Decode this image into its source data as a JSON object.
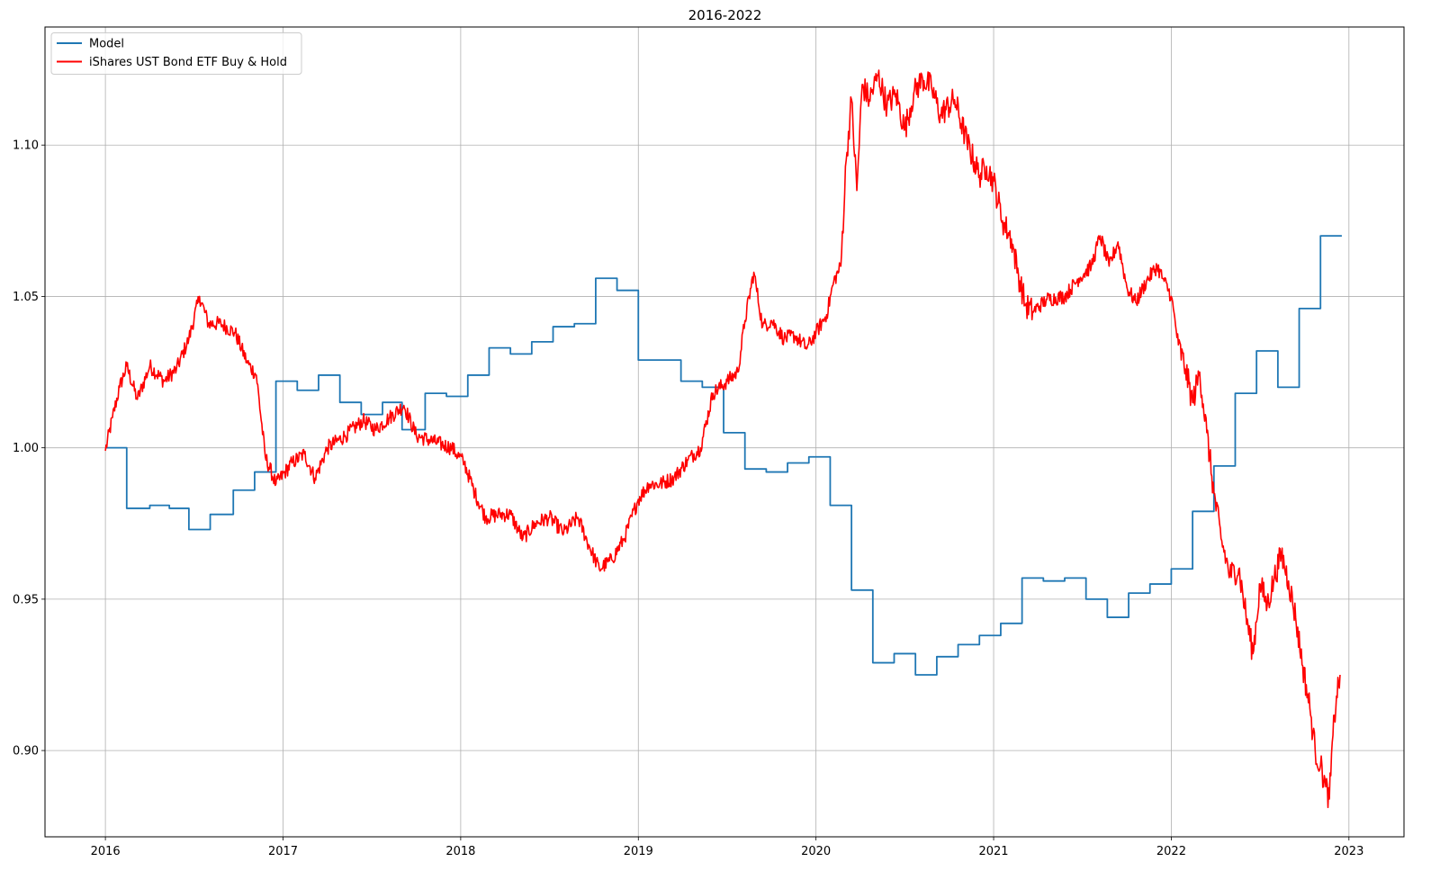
{
  "chart_data": {
    "type": "line",
    "title": "2016-2022",
    "xlabel": "",
    "ylabel": "",
    "xlim": [
      2015.66,
      2023.31
    ],
    "ylim": [
      0.8715,
      1.139
    ],
    "x_ticks": [
      {
        "value": 2016,
        "label": "2016"
      },
      {
        "value": 2017,
        "label": "2017"
      },
      {
        "value": 2018,
        "label": "2018"
      },
      {
        "value": 2019,
        "label": "2019"
      },
      {
        "value": 2020,
        "label": "2020"
      },
      {
        "value": 2021,
        "label": "2021"
      },
      {
        "value": 2022,
        "label": "2022"
      },
      {
        "value": 2023,
        "label": "2023"
      }
    ],
    "y_ticks": [
      {
        "value": 0.9,
        "label": "0.90"
      },
      {
        "value": 0.95,
        "label": "0.95"
      },
      {
        "value": 1.0,
        "label": "1.00"
      },
      {
        "value": 1.05,
        "label": "1.05"
      },
      {
        "value": 1.1,
        "label": "1.10"
      }
    ],
    "grid": true,
    "legend_position": "top-left",
    "series": [
      {
        "name": "Model",
        "color": "#1f77b4",
        "style": "step",
        "points": [
          [
            2016.0,
            1.0
          ],
          [
            2016.12,
            1.0
          ],
          [
            2016.12,
            0.98
          ],
          [
            2016.25,
            0.98
          ],
          [
            2016.25,
            0.981
          ],
          [
            2016.36,
            0.981
          ],
          [
            2016.36,
            0.98
          ],
          [
            2016.47,
            0.98
          ],
          [
            2016.47,
            0.973
          ],
          [
            2016.59,
            0.973
          ],
          [
            2016.59,
            0.978
          ],
          [
            2016.72,
            0.978
          ],
          [
            2016.72,
            0.986
          ],
          [
            2016.84,
            0.986
          ],
          [
            2016.84,
            0.992
          ],
          [
            2016.96,
            0.992
          ],
          [
            2016.96,
            1.022
          ],
          [
            2017.08,
            1.022
          ],
          [
            2017.08,
            1.019
          ],
          [
            2017.2,
            1.019
          ],
          [
            2017.2,
            1.024
          ],
          [
            2017.32,
            1.024
          ],
          [
            2017.32,
            1.015
          ],
          [
            2017.44,
            1.015
          ],
          [
            2017.44,
            1.011
          ],
          [
            2017.56,
            1.011
          ],
          [
            2017.56,
            1.015
          ],
          [
            2017.67,
            1.015
          ],
          [
            2017.67,
            1.006
          ],
          [
            2017.8,
            1.006
          ],
          [
            2017.8,
            1.018
          ],
          [
            2017.92,
            1.018
          ],
          [
            2017.92,
            1.017
          ],
          [
            2018.04,
            1.017
          ],
          [
            2018.04,
            1.024
          ],
          [
            2018.16,
            1.024
          ],
          [
            2018.16,
            1.033
          ],
          [
            2018.28,
            1.033
          ],
          [
            2018.28,
            1.031
          ],
          [
            2018.4,
            1.031
          ],
          [
            2018.4,
            1.035
          ],
          [
            2018.52,
            1.035
          ],
          [
            2018.52,
            1.04
          ],
          [
            2018.64,
            1.04
          ],
          [
            2018.64,
            1.041
          ],
          [
            2018.76,
            1.041
          ],
          [
            2018.76,
            1.056
          ],
          [
            2018.88,
            1.056
          ],
          [
            2018.88,
            1.052
          ],
          [
            2019.0,
            1.052
          ],
          [
            2019.0,
            1.029
          ],
          [
            2019.12,
            1.029
          ],
          [
            2019.12,
            1.029
          ],
          [
            2019.24,
            1.029
          ],
          [
            2019.24,
            1.022
          ],
          [
            2019.36,
            1.022
          ],
          [
            2019.36,
            1.02
          ],
          [
            2019.48,
            1.02
          ],
          [
            2019.48,
            1.005
          ],
          [
            2019.6,
            1.005
          ],
          [
            2019.6,
            0.993
          ],
          [
            2019.72,
            0.993
          ],
          [
            2019.72,
            0.992
          ],
          [
            2019.84,
            0.992
          ],
          [
            2019.84,
            0.995
          ],
          [
            2019.96,
            0.995
          ],
          [
            2019.96,
            0.997
          ],
          [
            2020.08,
            0.997
          ],
          [
            2020.08,
            0.981
          ],
          [
            2020.2,
            0.981
          ],
          [
            2020.2,
            0.953
          ],
          [
            2020.32,
            0.953
          ],
          [
            2020.32,
            0.929
          ],
          [
            2020.44,
            0.929
          ],
          [
            2020.44,
            0.932
          ],
          [
            2020.56,
            0.932
          ],
          [
            2020.56,
            0.925
          ],
          [
            2020.68,
            0.925
          ],
          [
            2020.68,
            0.931
          ],
          [
            2020.8,
            0.931
          ],
          [
            2020.8,
            0.935
          ],
          [
            2020.92,
            0.935
          ],
          [
            2020.92,
            0.938
          ],
          [
            2021.04,
            0.938
          ],
          [
            2021.04,
            0.942
          ],
          [
            2021.16,
            0.942
          ],
          [
            2021.16,
            0.957
          ],
          [
            2021.28,
            0.957
          ],
          [
            2021.28,
            0.956
          ],
          [
            2021.4,
            0.956
          ],
          [
            2021.4,
            0.957
          ],
          [
            2021.52,
            0.957
          ],
          [
            2021.52,
            0.95
          ],
          [
            2021.64,
            0.95
          ],
          [
            2021.64,
            0.944
          ],
          [
            2021.76,
            0.944
          ],
          [
            2021.76,
            0.952
          ],
          [
            2021.88,
            0.952
          ],
          [
            2021.88,
            0.955
          ],
          [
            2022.0,
            0.955
          ],
          [
            2022.0,
            0.96
          ],
          [
            2022.12,
            0.96
          ],
          [
            2022.12,
            0.979
          ],
          [
            2022.24,
            0.979
          ],
          [
            2022.24,
            0.994
          ],
          [
            2022.36,
            0.994
          ],
          [
            2022.36,
            1.018
          ],
          [
            2022.48,
            1.018
          ],
          [
            2022.48,
            1.032
          ],
          [
            2022.6,
            1.032
          ],
          [
            2022.6,
            1.02
          ],
          [
            2022.72,
            1.02
          ],
          [
            2022.72,
            1.046
          ],
          [
            2022.84,
            1.046
          ],
          [
            2022.84,
            1.07
          ],
          [
            2022.96,
            1.07
          ]
        ]
      },
      {
        "name": "iShares UST Bond ETF Buy & Hold",
        "color": "#ff0000",
        "style": "line",
        "anchors": [
          [
            2016.0,
            0.999
          ],
          [
            2016.04,
            1.01
          ],
          [
            2016.08,
            1.02
          ],
          [
            2016.12,
            1.027
          ],
          [
            2016.18,
            1.016
          ],
          [
            2016.25,
            1.027
          ],
          [
            2016.33,
            1.022
          ],
          [
            2016.4,
            1.026
          ],
          [
            2016.47,
            1.036
          ],
          [
            2016.53,
            1.05
          ],
          [
            2016.58,
            1.041
          ],
          [
            2016.65,
            1.041
          ],
          [
            2016.73,
            1.038
          ],
          [
            2016.8,
            1.028
          ],
          [
            2016.85,
            1.024
          ],
          [
            2016.9,
            0.997
          ],
          [
            2016.96,
            0.988
          ],
          [
            2017.05,
            0.995
          ],
          [
            2017.12,
            0.998
          ],
          [
            2017.18,
            0.99
          ],
          [
            2017.25,
            1.0
          ],
          [
            2017.35,
            1.004
          ],
          [
            2017.45,
            1.009
          ],
          [
            2017.52,
            1.006
          ],
          [
            2017.6,
            1.01
          ],
          [
            2017.68,
            1.014
          ],
          [
            2017.75,
            1.004
          ],
          [
            2017.85,
            1.002
          ],
          [
            2017.95,
            1.0
          ],
          [
            2018.02,
            0.995
          ],
          [
            2018.08,
            0.985
          ],
          [
            2018.14,
            0.977
          ],
          [
            2018.22,
            0.978
          ],
          [
            2018.28,
            0.978
          ],
          [
            2018.35,
            0.97
          ],
          [
            2018.42,
            0.975
          ],
          [
            2018.5,
            0.977
          ],
          [
            2018.58,
            0.972
          ],
          [
            2018.66,
            0.977
          ],
          [
            2018.72,
            0.968
          ],
          [
            2018.78,
            0.96
          ],
          [
            2018.85,
            0.963
          ],
          [
            2018.92,
            0.97
          ],
          [
            2019.0,
            0.983
          ],
          [
            2019.06,
            0.988
          ],
          [
            2019.12,
            0.988
          ],
          [
            2019.2,
            0.99
          ],
          [
            2019.28,
            0.996
          ],
          [
            2019.35,
            1.0
          ],
          [
            2019.42,
            1.018
          ],
          [
            2019.5,
            1.022
          ],
          [
            2019.56,
            1.025
          ],
          [
            2019.6,
            1.042
          ],
          [
            2019.65,
            1.058
          ],
          [
            2019.7,
            1.04
          ],
          [
            2019.75,
            1.042
          ],
          [
            2019.82,
            1.036
          ],
          [
            2019.88,
            1.037
          ],
          [
            2019.95,
            1.033
          ],
          [
            2020.0,
            1.038
          ],
          [
            2020.06,
            1.044
          ],
          [
            2020.1,
            1.055
          ],
          [
            2020.14,
            1.06
          ],
          [
            2020.17,
            1.095
          ],
          [
            2020.2,
            1.115
          ],
          [
            2020.23,
            1.085
          ],
          [
            2020.26,
            1.12
          ],
          [
            2020.3,
            1.115
          ],
          [
            2020.35,
            1.123
          ],
          [
            2020.4,
            1.113
          ],
          [
            2020.45,
            1.117
          ],
          [
            2020.5,
            1.105
          ],
          [
            2020.55,
            1.117
          ],
          [
            2020.6,
            1.122
          ],
          [
            2020.65,
            1.119
          ],
          [
            2020.7,
            1.11
          ],
          [
            2020.78,
            1.115
          ],
          [
            2020.85,
            1.101
          ],
          [
            2020.92,
            1.09
          ],
          [
            2020.96,
            1.093
          ],
          [
            2021.0,
            1.088
          ],
          [
            2021.05,
            1.075
          ],
          [
            2021.1,
            1.069
          ],
          [
            2021.14,
            1.057
          ],
          [
            2021.18,
            1.047
          ],
          [
            2021.22,
            1.045
          ],
          [
            2021.3,
            1.049
          ],
          [
            2021.4,
            1.05
          ],
          [
            2021.48,
            1.056
          ],
          [
            2021.55,
            1.06
          ],
          [
            2021.6,
            1.07
          ],
          [
            2021.65,
            1.06
          ],
          [
            2021.7,
            1.068
          ],
          [
            2021.75,
            1.053
          ],
          [
            2021.8,
            1.048
          ],
          [
            2021.86,
            1.055
          ],
          [
            2021.92,
            1.06
          ],
          [
            2021.96,
            1.055
          ],
          [
            2022.0,
            1.05
          ],
          [
            2022.04,
            1.034
          ],
          [
            2022.08,
            1.026
          ],
          [
            2022.12,
            1.015
          ],
          [
            2022.16,
            1.025
          ],
          [
            2022.2,
            1.005
          ],
          [
            2022.24,
            0.985
          ],
          [
            2022.28,
            0.97
          ],
          [
            2022.33,
            0.958
          ],
          [
            2022.38,
            0.96
          ],
          [
            2022.42,
            0.945
          ],
          [
            2022.46,
            0.932
          ],
          [
            2022.5,
            0.955
          ],
          [
            2022.54,
            0.948
          ],
          [
            2022.58,
            0.957
          ],
          [
            2022.62,
            0.965
          ],
          [
            2022.66,
            0.956
          ],
          [
            2022.7,
            0.944
          ],
          [
            2022.74,
            0.928
          ],
          [
            2022.78,
            0.914
          ],
          [
            2022.81,
            0.9
          ],
          [
            2022.84,
            0.895
          ],
          [
            2022.87,
            0.888
          ],
          [
            2022.89,
            0.884
          ],
          [
            2022.91,
            0.905
          ],
          [
            2022.93,
            0.918
          ],
          [
            2022.95,
            0.925
          ]
        ]
      }
    ]
  }
}
